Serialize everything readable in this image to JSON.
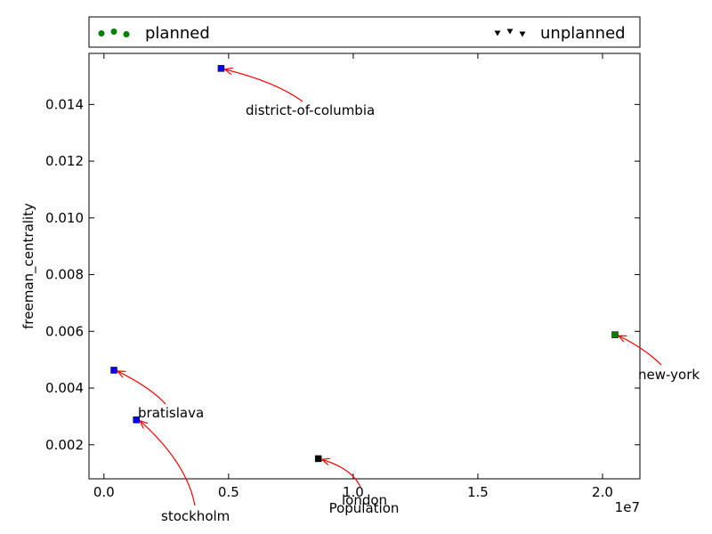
{
  "chart_data": {
    "type": "scatter",
    "title": "",
    "xlabel": "Population",
    "ylabel": "freeman_centrality",
    "x_offset_label": "1e7",
    "xlim": [
      -600000,
      21500000
    ],
    "ylim": [
      0.0008,
      0.0158
    ],
    "xticks": [
      {
        "value": 0,
        "label": "0.0"
      },
      {
        "value": 5000000,
        "label": "0.5"
      },
      {
        "value": 10000000,
        "label": "1.0"
      },
      {
        "value": 15000000,
        "label": "1.5"
      },
      {
        "value": 20000000,
        "label": "2.0"
      }
    ],
    "yticks": [
      {
        "value": 0.002,
        "label": "0.002"
      },
      {
        "value": 0.004,
        "label": "0.004"
      },
      {
        "value": 0.006,
        "label": "0.006"
      },
      {
        "value": 0.008,
        "label": "0.008"
      },
      {
        "value": 0.01,
        "label": "0.010"
      },
      {
        "value": 0.012,
        "label": "0.012"
      },
      {
        "value": 0.014,
        "label": "0.014"
      }
    ],
    "grid": false,
    "legend": {
      "placement": "above-plot",
      "entries": [
        {
          "label": "planned",
          "marker": "circle",
          "color": "#008000"
        },
        {
          "label": "unplanned",
          "marker": "triangle-down",
          "color": "#000000"
        }
      ]
    },
    "points": [
      {
        "label": "district-of-columbia",
        "x": 4700000,
        "y": 0.01527,
        "color": "#0000ff"
      },
      {
        "label": "new-york",
        "x": 20500000,
        "y": 0.00588,
        "color": "#008000"
      },
      {
        "label": "bratislava",
        "x": 400000,
        "y": 0.00463,
        "color": "#0000ff"
      },
      {
        "label": "stockholm",
        "x": 1300000,
        "y": 0.00288,
        "color": "#0000ff"
      },
      {
        "label": "london",
        "x": 8600000,
        "y": 0.00151,
        "color": "#000000"
      }
    ],
    "annotation_color": "#ff0000"
  }
}
